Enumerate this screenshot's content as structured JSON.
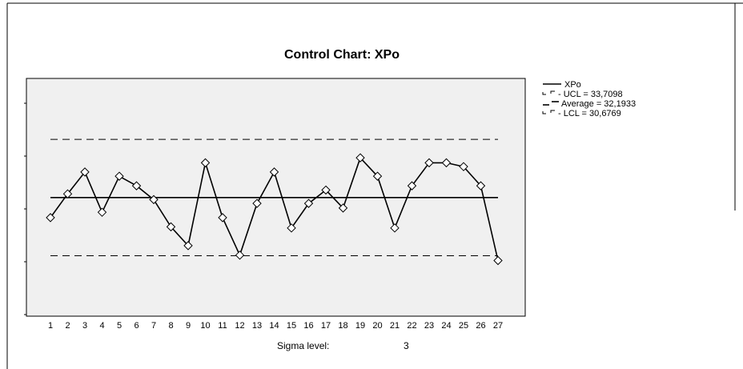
{
  "chart_data": {
    "type": "line",
    "title": "Control Chart: XPo",
    "x": [
      1,
      2,
      3,
      4,
      5,
      6,
      7,
      8,
      9,
      10,
      11,
      12,
      13,
      14,
      15,
      16,
      17,
      18,
      19,
      20,
      21,
      22,
      23,
      24,
      25,
      26,
      27
    ],
    "series": [
      {
        "name": "XPo",
        "values": [
          31.67,
          32.29,
          32.86,
          31.81,
          32.75,
          32.5,
          32.14,
          31.43,
          30.94,
          33.1,
          31.67,
          30.69,
          32.04,
          32.86,
          31.4,
          32.04,
          32.39,
          31.92,
          33.23,
          32.75,
          31.4,
          32.5,
          33.1,
          33.1,
          33.0,
          32.5,
          30.55
        ]
      }
    ],
    "limits": {
      "ucl": 33.7098,
      "average": 32.1933,
      "lcl": 30.6769
    },
    "ylim": [
      29.1,
      35.3
    ],
    "grid": false,
    "legend": "right"
  },
  "legend": {
    "items": [
      {
        "label": "XPo",
        "style": "solid"
      },
      {
        "label": "- UCL = 33,7098",
        "style": "ucl"
      },
      {
        "label": "Average = 32,1933",
        "style": "average"
      },
      {
        "label": "- LCL = 30,6769",
        "style": "lcl"
      }
    ]
  },
  "footer": {
    "sigma_label": "Sigma level:",
    "sigma_value": "3"
  },
  "colors": {
    "plot_bg": "#f0f0f0",
    "line": "#000000"
  }
}
